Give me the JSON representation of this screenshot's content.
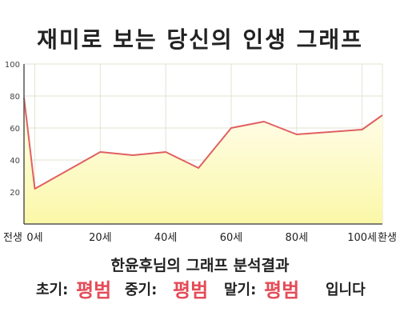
{
  "chart_data": {
    "type": "area",
    "title": "재미로 보는 당신의 인생 그래프",
    "x": [
      "전생",
      "0세",
      "20세",
      "40세",
      "60세",
      "80세",
      "100세",
      "환생"
    ],
    "y": [
      79,
      22,
      45,
      45,
      60,
      56,
      59,
      68
    ],
    "points": [
      {
        "x": "전생",
        "y": 79
      },
      {
        "x": "0세",
        "y": 22
      },
      {
        "x": "20세",
        "y": 45
      },
      {
        "x": "30세",
        "y": 43
      },
      {
        "x": "40세",
        "y": 45
      },
      {
        "x": "50세",
        "y": 35
      },
      {
        "x": "60세",
        "y": 60
      },
      {
        "x": "70세",
        "y": 64
      },
      {
        "x": "80세",
        "y": 56
      },
      {
        "x": "100세",
        "y": 59
      },
      {
        "x": "환생",
        "y": 68
      }
    ],
    "x_tick_labels": [
      "전생",
      "0세",
      "20세",
      "40세",
      "60세",
      "80세",
      "100세",
      "환생"
    ],
    "y_ticks": [
      20,
      40,
      60,
      80,
      100
    ],
    "ylim": [
      0,
      100
    ],
    "grid": true,
    "colors": {
      "line": "#e06060",
      "fill_top": "#fffdf0",
      "fill_bottom": "#fbf8a8",
      "grid": "#e3e3d0",
      "axis": "#555555"
    }
  },
  "result": {
    "title": "한윤후님의 그래프 분석결과",
    "early_label": "초기:",
    "early_value": "평범",
    "middle_label": "중기:",
    "middle_value": "평범",
    "late_label": "말기:",
    "late_value": "평범",
    "suffix": "입니다"
  }
}
